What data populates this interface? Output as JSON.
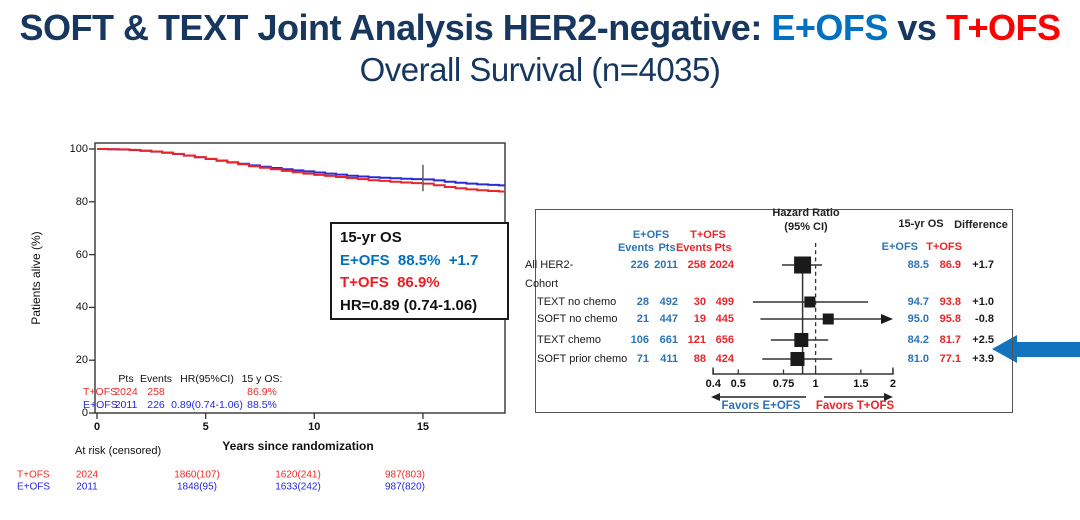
{
  "title": {
    "line1_prefix": "SOFT & TEXT Joint Analysis HER2-negative:",
    "arm_e": "E+OFS",
    "vs": "vs",
    "arm_t": "T+OFS",
    "line2": "Overall Survival (n=4035)"
  },
  "colors": {
    "navy": "#17375E",
    "title_blue": "#0070C0",
    "title_red": "#FF0000",
    "km_blue": "#2B2BD5",
    "km_red": "#E8262A",
    "table_blue": "#2626E0",
    "table_red": "#EE2A2A",
    "forest_blue": "#2E74B5",
    "forest_red": "#E8252A",
    "marker_black": "#1a1a1a",
    "arrow_blue": "#1274BE"
  },
  "chart_data": [
    {
      "id": "km-overall-survival",
      "type": "line",
      "title": "",
      "xlabel": "Years since randomization",
      "ylabel": "Patients alive (%)",
      "xlim": [
        0,
        18.8
      ],
      "ylim": [
        0,
        100
      ],
      "xticks": [
        0,
        5,
        10,
        15
      ],
      "yticks": [
        100,
        80,
        60,
        40,
        20,
        0
      ],
      "grid": false,
      "series": [
        {
          "name": "E+OFS",
          "color": "#2B2BD5",
          "x": [
            0,
            0.5,
            1,
            1.5,
            2,
            2.5,
            3,
            3.5,
            4,
            4.5,
            5,
            5.5,
            6,
            6.5,
            7,
            7.5,
            8,
            8.5,
            9,
            9.5,
            10,
            10.5,
            11,
            11.5,
            12,
            12.5,
            13,
            13.5,
            14,
            14.5,
            15,
            15.5,
            16,
            16.5,
            17,
            17.5,
            18,
            18.5,
            18.75
          ],
          "y": [
            100,
            99.9,
            99.8,
            99.6,
            99.3,
            99.0,
            98.6,
            98.1,
            97.5,
            96.9,
            96.2,
            95.6,
            95.0,
            94.4,
            93.8,
            93.3,
            92.8,
            92.3,
            91.9,
            91.5,
            91.1,
            90.7,
            90.3,
            89.9,
            89.6,
            89.3,
            89.1,
            88.9,
            88.7,
            88.6,
            88.5,
            88.1,
            87.6,
            87.2,
            86.9,
            86.6,
            86.4,
            86.2,
            86.0
          ]
        },
        {
          "name": "T+OFS",
          "color": "#E8262A",
          "x": [
            0,
            0.5,
            1,
            1.5,
            2,
            2.5,
            3,
            3.5,
            4,
            4.5,
            5,
            5.5,
            6,
            6.5,
            7,
            7.5,
            8,
            8.5,
            9,
            9.5,
            10,
            10.5,
            11,
            11.5,
            12,
            12.5,
            13,
            13.5,
            14,
            14.5,
            15,
            15.5,
            16,
            16.5,
            17,
            17.5,
            18,
            18.5,
            18.75
          ],
          "y": [
            100,
            99.9,
            99.85,
            99.65,
            99.35,
            99.05,
            98.65,
            98.15,
            97.55,
            96.95,
            96.25,
            95.55,
            94.9,
            94.2,
            93.5,
            92.9,
            92.3,
            91.7,
            91.2,
            90.7,
            90.2,
            89.8,
            89.4,
            89.0,
            88.6,
            88.2,
            87.9,
            87.6,
            87.3,
            87.1,
            86.9,
            86.3,
            85.6,
            85.1,
            84.7,
            84.4,
            84.1,
            83.9,
            83.8
          ]
        }
      ],
      "censor_tick": {
        "x": 15,
        "y_low": 84,
        "y_high": 94
      },
      "annotation": {
        "title": "15-yr OS",
        "e_line": "E+OFS  88.5%  +1.7",
        "t_line": "T+OFS  86.9%",
        "hr_line": "HR=0.89 (0.74-1.06)"
      },
      "summary_table": {
        "col_headers": [
          "Pts",
          "Events",
          "HR(95%CI)",
          "15 y OS:"
        ],
        "rows": [
          {
            "label": "T+OFS",
            "arm": "t",
            "pts": "2024",
            "events": "258",
            "hr": "",
            "os": "86.9%"
          },
          {
            "label": "E+OFS",
            "arm": "e",
            "pts": "2011",
            "events": "226",
            "hr": "0.89(0.74-1.06)",
            "os": "88.5%"
          }
        ]
      },
      "at_risk": {
        "title": "At risk (censored)",
        "rows": [
          {
            "label": "T+OFS",
            "arm": "t",
            "values": [
              "2024",
              "1860(107)",
              "1620(241)",
              "987(803)"
            ]
          },
          {
            "label": "E+OFS",
            "arm": "e",
            "values": [
              "2011",
              "1848(95)",
              "1633(242)",
              "987(820)"
            ]
          }
        ]
      }
    },
    {
      "id": "forest-subgroups",
      "type": "forest",
      "headers": {
        "hr1": "Hazard Ratio",
        "hr2": "(95% CI)",
        "os": "15-yr OS",
        "diff": "Difference",
        "arm_e": "E+OFS",
        "arm_t": "T+OFS",
        "events": "Events",
        "pts": "Pts"
      },
      "axis": {
        "tick_labels": [
          "0.4",
          "0.5",
          "0.75",
          "1",
          "1.5",
          "2"
        ],
        "tick_values": [
          0.4,
          0.5,
          0.75,
          1,
          1.5,
          2
        ],
        "reference_line": 1,
        "overall_line": 0.89,
        "scale": "log"
      },
      "favors": {
        "left": "Favors E+OFS",
        "right": "Favors T+OFS"
      },
      "rows": [
        {
          "label": "All HER2-",
          "indent": 0,
          "e_events": "226",
          "e_pts": "2011",
          "t_events": "258",
          "t_pts": "2024",
          "hr": 0.89,
          "ci_low": 0.74,
          "ci_high": 1.06,
          "arrow_right": false,
          "marker": "large",
          "os_e": "88.5",
          "os_t": "86.9",
          "diff": "+1.7"
        },
        {
          "label": "Cohort",
          "indent": 0,
          "subheading": true
        },
        {
          "label": "TEXT no chemo",
          "indent": 1,
          "e_events": "28",
          "e_pts": "492",
          "t_events": "30",
          "t_pts": "499",
          "hr": 0.95,
          "ci_low": 0.57,
          "ci_high": 1.6,
          "arrow_right": false,
          "marker": "small",
          "os_e": "94.7",
          "os_t": "93.8",
          "diff": "+1.0"
        },
        {
          "label": "SOFT no chemo",
          "indent": 1,
          "e_events": "21",
          "e_pts": "447",
          "t_events": "19",
          "t_pts": "445",
          "hr": 1.12,
          "ci_low": 0.61,
          "ci_high": 2.1,
          "arrow_right": true,
          "marker": "small",
          "os_e": "95.0",
          "os_t": "95.8",
          "diff": "-0.8"
        },
        {
          "label": "TEXT chemo",
          "indent": 1,
          "e_events": "106",
          "e_pts": "661",
          "t_events": "121",
          "t_pts": "656",
          "hr": 0.88,
          "ci_low": 0.67,
          "ci_high": 1.12,
          "arrow_right": false,
          "marker": "medium",
          "os_e": "84.2",
          "os_t": "81.7",
          "diff": "+2.5"
        },
        {
          "label": "SOFT prior chemo",
          "indent": 1,
          "e_events": "71",
          "e_pts": "411",
          "t_events": "88",
          "t_pts": "424",
          "hr": 0.85,
          "ci_low": 0.62,
          "ci_high": 1.16,
          "arrow_right": false,
          "marker": "medium",
          "os_e": "81.0",
          "os_t": "77.1",
          "diff": "+3.9"
        }
      ]
    }
  ]
}
